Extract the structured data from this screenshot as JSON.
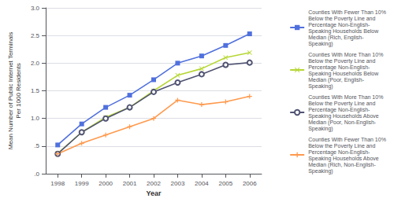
{
  "chart_data": {
    "type": "line",
    "x": [
      1998,
      1999,
      2000,
      2001,
      2002,
      2003,
      2004,
      2005,
      2006
    ],
    "series": [
      {
        "name": "Counties With Fewer Than 10%\nBelow the Poverty Line and\nPercentage Non-English-\nSpeaking Households Below\nMedian (Rich, English-\nSpeaking)",
        "marker": "square",
        "values": [
          0.52,
          0.9,
          1.2,
          1.42,
          1.7,
          2.0,
          2.13,
          2.32,
          2.53
        ]
      },
      {
        "name": "Counties With More Than 10%\nBelow the Poverty Line and\nPercentage Non-English-\nSpeaking Households Below\nMedian (Poor, English-\nSpeaking)",
        "marker": "x",
        "values": [
          0.37,
          0.75,
          1.02,
          1.2,
          1.5,
          1.78,
          1.9,
          2.1,
          2.19
        ]
      },
      {
        "name": "Counties With More Than 10%\nBelow the Poverty Line and\nPercentage Non-English-\nSpeaking Households Above\nMedian (Poor, Non-English-\nSpeaking)",
        "marker": "circle",
        "values": [
          0.36,
          0.75,
          1.0,
          1.2,
          1.48,
          1.65,
          1.8,
          1.97,
          2.01
        ]
      },
      {
        "name": "Counties With Fewer Than 10%\nBelow the Poverty Line and\nPercentage Non-English-\nSpeaking Households Above\nMedian (Rich, Non-English-\nSpeaking)",
        "marker": "plus",
        "values": [
          0.36,
          0.55,
          0.7,
          0.85,
          1.0,
          1.33,
          1.25,
          1.3,
          1.4
        ]
      }
    ],
    "xlabel": "Year",
    "ylabel": "Mean Number of Public Internet Terminals\nPer 1000 Residents",
    "xlim": [
      1997.5,
      2006.5
    ],
    "xticks": [
      1998,
      1999,
      2000,
      2001,
      2002,
      2003,
      2004,
      2005,
      2006
    ],
    "ylim": [
      0.0,
      3.0
    ],
    "yticks": [
      {
        "value": 0.0,
        "label": ".0"
      },
      {
        "value": 0.5,
        "label": ".5"
      },
      {
        "value": 1.0,
        "label": "1.0"
      },
      1.5,
      {
        "value": 2.0,
        "label": "2.0"
      },
      2.5,
      {
        "value": 3.0,
        "label": "3.0"
      }
    ],
    "grid": true,
    "legend": "right"
  }
}
